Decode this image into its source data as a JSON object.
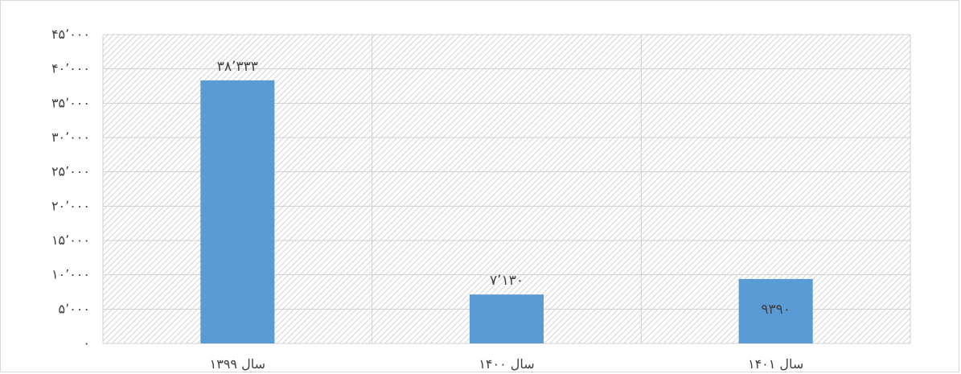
{
  "chart_data": {
    "type": "bar",
    "categories": [
      "سال ۱۳۹۹",
      "سال ۱۴۰۰",
      "سال ۱۴۰۱"
    ],
    "values": [
      38333,
      7130,
      9390
    ],
    "value_labels": [
      "۳۸٬۳۳۳",
      "۷٬۱۳۰",
      "۹۳۹۰"
    ],
    "y_ticks": [
      0,
      5000,
      10000,
      15000,
      20000,
      25000,
      30000,
      35000,
      40000,
      45000
    ],
    "y_tick_labels": [
      "۰",
      "۵٬۰۰۰",
      "۱۰٬۰۰۰",
      "۱۵٬۰۰۰",
      "۲۰٬۰۰۰",
      "۲۵٬۰۰۰",
      "۳۰٬۰۰۰",
      "۳۵٬۰۰۰",
      "۴۰٬۰۰۰",
      "۴۵٬۰۰۰"
    ],
    "ylim": [
      0,
      45000
    ],
    "title": "",
    "xlabel": "",
    "ylabel": "",
    "grid": true,
    "legend": "none",
    "bar_color": "#5b9bd5",
    "plot_background": "hatched-gray"
  }
}
